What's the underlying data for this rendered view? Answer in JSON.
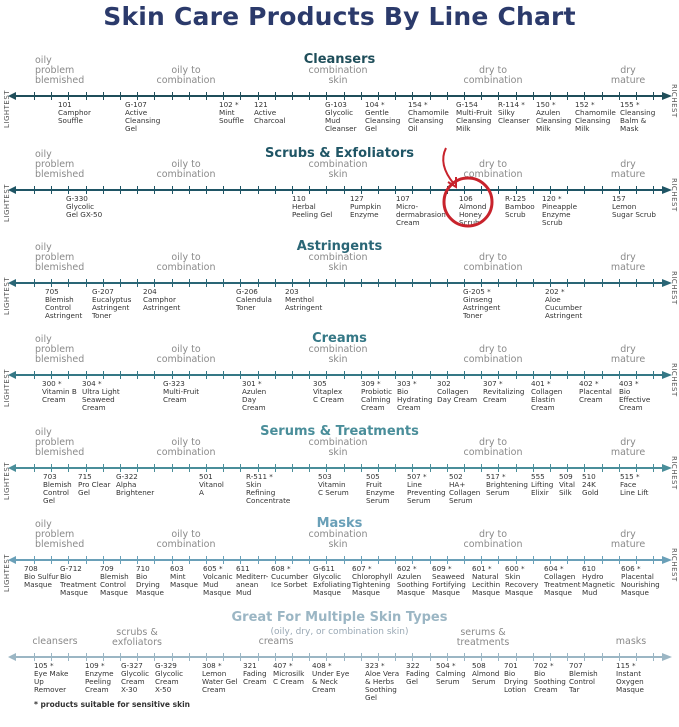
{
  "title": "Skin Care Products By Line Chart",
  "axis_labels": {
    "left": "LIGHTEST",
    "right": "RICHEST"
  },
  "skin_types": {
    "oily": "oily\nproblem\nblemished",
    "oily_combo": "oily to\ncombination",
    "combo": "combination\nskin",
    "dry_combo": "dry to\ncombination",
    "dry": "dry\nmature"
  },
  "highlight": {
    "product": "106 Almond Honey Scrub",
    "color": "#c8232c"
  },
  "sections": [
    {
      "name": "Cleansers",
      "color": "#1f4e5a",
      "products": [
        {
          "code": "101",
          "name": "Camphor\nSouffle"
        },
        {
          "code": "G-107",
          "name": "Active\nCleansing\nGel"
        },
        {
          "code": "102 *",
          "name": "Mint\nSouffle"
        },
        {
          "code": "121",
          "name": "Active\nCharcoal"
        },
        {
          "code": "G-103",
          "name": "Glycolic\nMud\nCleanser"
        },
        {
          "code": "104 *",
          "name": "Gentle\nCleansing\nGel"
        },
        {
          "code": "154 *",
          "name": "Chamomile\nCleansing\nOil"
        },
        {
          "code": "G-154",
          "name": "Multi-Fruit\nCleansing\nMilk"
        },
        {
          "code": "R-114 *",
          "name": "Silky\nCleanser"
        },
        {
          "code": "150 *",
          "name": "Azulen\nCleansing\nMilk"
        },
        {
          "code": "152 *",
          "name": "Chamomile\nCleansing\nMilk"
        },
        {
          "code": "155 *",
          "name": "Cleansing\nBalm &\nMask"
        }
      ]
    },
    {
      "name": "Scrubs & Exfoliators",
      "color": "#1f5565",
      "products": [
        {
          "code": "G-330",
          "name": "Glycolic\nGel GX-50"
        },
        {
          "code": "110",
          "name": "Herbal\nPeeling Gel"
        },
        {
          "code": "127",
          "name": "Pumpkin\nEnzyme"
        },
        {
          "code": "107",
          "name": "Micro-\ndermabrasion\nCream"
        },
        {
          "code": "106",
          "name": "Almond\nHoney\nScrub"
        },
        {
          "code": "R-125",
          "name": "Bamboo\nScrub"
        },
        {
          "code": "120 *",
          "name": "Pineapple\nEnzyme\nScrub"
        },
        {
          "code": "157",
          "name": "Lemon\nSugar Scrub"
        }
      ]
    },
    {
      "name": "Astringents",
      "color": "#2a6676",
      "products": [
        {
          "code": "705",
          "name": "Blemish\nControl\nAstringent"
        },
        {
          "code": "G-207",
          "name": "Eucalyptus\nAstringent\nToner"
        },
        {
          "code": "204",
          "name": "Camphor\nAstringent"
        },
        {
          "code": "G-206",
          "name": "Calendula\nToner"
        },
        {
          "code": "203",
          "name": "Menthol\nAstringent"
        },
        {
          "code": "G-205 *",
          "name": "Ginseng\nAstringent\nToner"
        },
        {
          "code": "202 *",
          "name": "Aloe\nCucumber\nAstringent"
        }
      ]
    },
    {
      "name": "Creams",
      "color": "#357886",
      "products": [
        {
          "code": "300 *",
          "name": "Vitamin B\nCream"
        },
        {
          "code": "304 *",
          "name": "Ultra Light\nSeaweed\nCream"
        },
        {
          "code": "G-323",
          "name": "Multi-Fruit\nCream"
        },
        {
          "code": "301 *",
          "name": "Azulen\nDay\nCream"
        },
        {
          "code": "305",
          "name": "Vitaplex\nC Cream"
        },
        {
          "code": "309 *",
          "name": "Probiotic\nCalming\nCream"
        },
        {
          "code": "303 *",
          "name": "Bio\nHydrating\nCream"
        },
        {
          "code": "302",
          "name": "Collagen\nDay Cream"
        },
        {
          "code": "307 *",
          "name": "Revitalizing\nCream"
        },
        {
          "code": "401 *",
          "name": "Collagen\nElastin\nCream"
        },
        {
          "code": "402 *",
          "name": "Placental\nCream"
        },
        {
          "code": "403 *",
          "name": "Bio\nEffective\nCream"
        }
      ]
    },
    {
      "name": "Serums & Treatments",
      "color": "#4a8e9a",
      "products": [
        {
          "code": "703",
          "name": "Blemish\nControl\nGel"
        },
        {
          "code": "715",
          "name": "Pro Clear\nGel"
        },
        {
          "code": "G-322",
          "name": "Alpha\nBrightener"
        },
        {
          "code": "501",
          "name": "Vitanol\nA"
        },
        {
          "code": "R-511 *",
          "name": "Skin\nRefining\nConcentrate"
        },
        {
          "code": "503",
          "name": "Vitamin\nC Serum"
        },
        {
          "code": "505",
          "name": "Fruit\nEnzyme\nSerum"
        },
        {
          "code": "507 *",
          "name": "Line\nPreventing\nSerum"
        },
        {
          "code": "502",
          "name": "HA+\nCollagen\nSerum"
        },
        {
          "code": "517 *",
          "name": "Brightening\nSerum"
        },
        {
          "code": "555",
          "name": "Lifting\nElixir"
        },
        {
          "code": "509",
          "name": "Vital\nSilk"
        },
        {
          "code": "510",
          "name": "24K\nGold"
        },
        {
          "code": "515 *",
          "name": "Face\nLine Lift"
        }
      ]
    },
    {
      "name": "Masks",
      "color": "#6aa0b8",
      "products": [
        {
          "code": "708",
          "name": "Bio Sulfur\nMasque"
        },
        {
          "code": "G-712",
          "name": "Bio\nTreatment\nMasque"
        },
        {
          "code": "709",
          "name": "Blemish\nControl\nMasque"
        },
        {
          "code": "710",
          "name": "Bio\nDrying\nMasque"
        },
        {
          "code": "603",
          "name": "Mint\nMasque"
        },
        {
          "code": "605 *",
          "name": "Volcanic\nMud\nMasque"
        },
        {
          "code": "611",
          "name": "Mediterr-\nanean\nMud"
        },
        {
          "code": "608 *",
          "name": "Cucumber\nIce Sorbet"
        },
        {
          "code": "G-611",
          "name": "Glycolic\nExfoliating\nMasque"
        },
        {
          "code": "607 *",
          "name": "Chlorophyll\nTightening\nMasque"
        },
        {
          "code": "602 *",
          "name": "Azulen\nSoothing\nMasque"
        },
        {
          "code": "609 *",
          "name": "Seaweed\nFortifying\nMasque"
        },
        {
          "code": "601 *",
          "name": "Natural\nLecithin\nMasque"
        },
        {
          "code": "600 *",
          "name": "Skin\nRecovery\nMasque"
        },
        {
          "code": "604 *",
          "name": "Collagen\nTreatment\nMasque"
        },
        {
          "code": "610",
          "name": "Hydro\nMagnetic\nMud"
        },
        {
          "code": "606 *",
          "name": "Placental\nNourishing\nMasque"
        }
      ]
    }
  ],
  "multi": {
    "name": "Great For Multiple Skin Types",
    "subtitle": "(oily, dry, or combination skin)",
    "color": "#9bb6c4",
    "categories": [
      "cleansers",
      "scrubs &\nexfoliators",
      "creams",
      "serums &\ntreatments",
      "masks"
    ],
    "products": [
      {
        "code": "105 *",
        "name": "Eye Make\nUp\nRemover"
      },
      {
        "code": "109 *",
        "name": "Enzyme\nPeeling\nCream"
      },
      {
        "code": "G-327",
        "name": "Glycolic\nCream\nX-30"
      },
      {
        "code": "G-329",
        "name": "Glycolic\nCream\nX-50"
      },
      {
        "code": "308 *",
        "name": "Lemon\nWater Gel\nCream"
      },
      {
        "code": "321",
        "name": "Fading\nCream"
      },
      {
        "code": "407 *",
        "name": "Microsilk\nC Cream"
      },
      {
        "code": "408 *",
        "name": "Under Eye\n& Neck\nCream"
      },
      {
        "code": "323 *",
        "name": "Aloe Vera\n& Herbs\nSoothing\nGel"
      },
      {
        "code": "322",
        "name": "Fading\nGel"
      },
      {
        "code": "504 *",
        "name": "Calming\nSerum"
      },
      {
        "code": "508",
        "name": "Almond\nSerum"
      },
      {
        "code": "701",
        "name": "Bio\nDrying\nLotion"
      },
      {
        "code": "702 *",
        "name": "Bio\nSoothing\nCream"
      },
      {
        "code": "707",
        "name": "Blemish\nControl\nTar"
      },
      {
        "code": "115 *",
        "name": "Instant\nOxygen\nMasque"
      }
    ]
  },
  "footnote": "* products suitable for sensitive skin"
}
